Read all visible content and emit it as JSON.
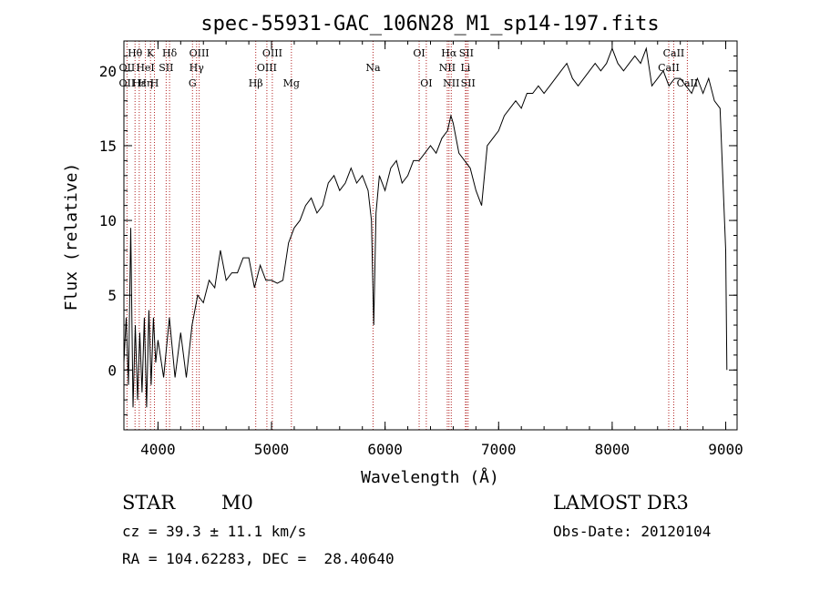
{
  "chart_data": {
    "type": "line",
    "title": "spec-55931-GAC_106N28_M1_sp14-197.fits",
    "xlabel": "Wavelength (Å)",
    "ylabel": "Flux (relative)",
    "xlim": [
      3700,
      9100
    ],
    "ylim": [
      -4,
      22
    ],
    "x_ticks": [
      4000,
      5000,
      6000,
      7000,
      8000,
      9000
    ],
    "y_ticks": [
      0,
      5,
      10,
      15,
      20
    ],
    "grid": false,
    "series": [
      {
        "name": "flux",
        "x": [
          3700,
          3720,
          3740,
          3760,
          3780,
          3800,
          3820,
          3840,
          3860,
          3880,
          3900,
          3920,
          3940,
          3960,
          3980,
          4000,
          4050,
          4100,
          4150,
          4200,
          4250,
          4300,
          4350,
          4400,
          4450,
          4500,
          4550,
          4600,
          4650,
          4700,
          4750,
          4800,
          4850,
          4900,
          4950,
          5000,
          5050,
          5100,
          5150,
          5200,
          5250,
          5300,
          5350,
          5400,
          5450,
          5500,
          5550,
          5600,
          5650,
          5700,
          5750,
          5800,
          5850,
          5880,
          5900,
          5920,
          5950,
          6000,
          6050,
          6100,
          6150,
          6200,
          6250,
          6300,
          6350,
          6400,
          6450,
          6500,
          6550,
          6580,
          6600,
          6650,
          6700,
          6750,
          6800,
          6850,
          6900,
          6950,
          7000,
          7050,
          7100,
          7150,
          7200,
          7250,
          7300,
          7350,
          7400,
          7450,
          7500,
          7550,
          7600,
          7650,
          7700,
          7750,
          7800,
          7850,
          7900,
          7950,
          8000,
          8050,
          8100,
          8150,
          8200,
          8250,
          8300,
          8350,
          8400,
          8450,
          8500,
          8550,
          8600,
          8650,
          8700,
          8750,
          8800,
          8850,
          8900,
          8950,
          9000,
          9010
        ],
        "values": [
          0.5,
          3.5,
          -1.0,
          9.5,
          -2.5,
          3.0,
          -2.0,
          2.5,
          -1.5,
          3.5,
          -2.5,
          4.0,
          -1.0,
          3.5,
          0.5,
          2.0,
          -0.5,
          3.5,
          -0.5,
          2.5,
          -0.5,
          3.0,
          5.0,
          4.5,
          6.0,
          5.5,
          8.0,
          6.0,
          6.5,
          6.5,
          7.5,
          7.5,
          5.5,
          7.0,
          6.0,
          6.0,
          5.8,
          6.0,
          8.5,
          9.5,
          10.0,
          11.0,
          11.5,
          10.5,
          11.0,
          12.5,
          13.0,
          12.0,
          12.5,
          13.5,
          12.5,
          13.0,
          12.0,
          10.0,
          3.0,
          10.5,
          13.0,
          12.0,
          13.5,
          14.0,
          12.5,
          13.0,
          14.0,
          14.0,
          14.5,
          15.0,
          14.5,
          15.5,
          16.0,
          17.0,
          16.5,
          14.5,
          14.0,
          13.5,
          12.0,
          11.0,
          15.0,
          15.5,
          16.0,
          17.0,
          17.5,
          18.0,
          17.5,
          18.5,
          18.5,
          19.0,
          18.5,
          19.0,
          19.5,
          20.0,
          20.5,
          19.5,
          19.0,
          19.5,
          20.0,
          20.5,
          20.0,
          20.5,
          21.5,
          20.5,
          20.0,
          20.5,
          21.0,
          20.5,
          21.5,
          19.0,
          19.5,
          20.0,
          19.0,
          19.5,
          19.5,
          19.0,
          18.5,
          19.5,
          18.5,
          19.5,
          18.0,
          17.5,
          8.0,
          0.0
        ]
      }
    ],
    "line_markers": [
      {
        "label": "Hθ",
        "x": 3798,
        "row": 0
      },
      {
        "label": "OII",
        "x": 3727,
        "row": 1
      },
      {
        "label": "OII",
        "x": 3727,
        "row": 2
      },
      {
        "label": "Hε",
        "x": 3835,
        "row": 2
      },
      {
        "label": "K",
        "x": 3934,
        "row": 0
      },
      {
        "label": "H",
        "x": 3969,
        "row": 2
      },
      {
        "label": "HeI",
        "x": 3889,
        "row": 1
      },
      {
        "label": "SII",
        "x": 4072,
        "row": 1
      },
      {
        "label": "Hη",
        "x": 3889,
        "row": 2
      },
      {
        "label": "Hδ",
        "x": 4102,
        "row": 0
      },
      {
        "label": "OIII",
        "x": 4363,
        "row": 0
      },
      {
        "label": "Hγ",
        "x": 4340,
        "row": 1
      },
      {
        "label": "G",
        "x": 4304,
        "row": 2
      },
      {
        "label": "OIII",
        "x": 5007,
        "row": 0
      },
      {
        "label": "OIII",
        "x": 4959,
        "row": 1
      },
      {
        "label": "Hβ",
        "x": 4861,
        "row": 2
      },
      {
        "label": "Mg",
        "x": 5175,
        "row": 2
      },
      {
        "label": "Na",
        "x": 5894,
        "row": 1
      },
      {
        "label": "OI",
        "x": 6300,
        "row": 0
      },
      {
        "label": "OI",
        "x": 6363,
        "row": 2
      },
      {
        "label": "Hα",
        "x": 6563,
        "row": 0
      },
      {
        "label": "SII",
        "x": 6716,
        "row": 0
      },
      {
        "label": "NII",
        "x": 6548,
        "row": 1
      },
      {
        "label": "Li",
        "x": 6708,
        "row": 1
      },
      {
        "label": "NII",
        "x": 6583,
        "row": 2
      },
      {
        "label": "SII",
        "x": 6731,
        "row": 2
      },
      {
        "label": "CaII",
        "x": 8542,
        "row": 0
      },
      {
        "label": "CaII",
        "x": 8498,
        "row": 1
      },
      {
        "label": "CaII",
        "x": 8662,
        "row": 2
      }
    ],
    "line_x": [
      3727,
      3798,
      3835,
      3889,
      3934,
      3969,
      4072,
      4102,
      4304,
      4340,
      4363,
      4861,
      4959,
      5007,
      5175,
      5894,
      6300,
      6363,
      6548,
      6563,
      6583,
      6708,
      6716,
      6731,
      8498,
      8542,
      8662
    ]
  },
  "info": {
    "object_type": "STAR",
    "subclass": "M0",
    "survey": "LAMOST DR3",
    "cz_text": "cz = 39.3 ± 11.1 km/s",
    "obs_date_text": "Obs-Date: 20120104",
    "coord_text": "RA = 104.62283, DEC =  28.40640"
  },
  "colors": {
    "spectrum": "#000000",
    "marker_line": "#b22222",
    "text": "#000000"
  }
}
